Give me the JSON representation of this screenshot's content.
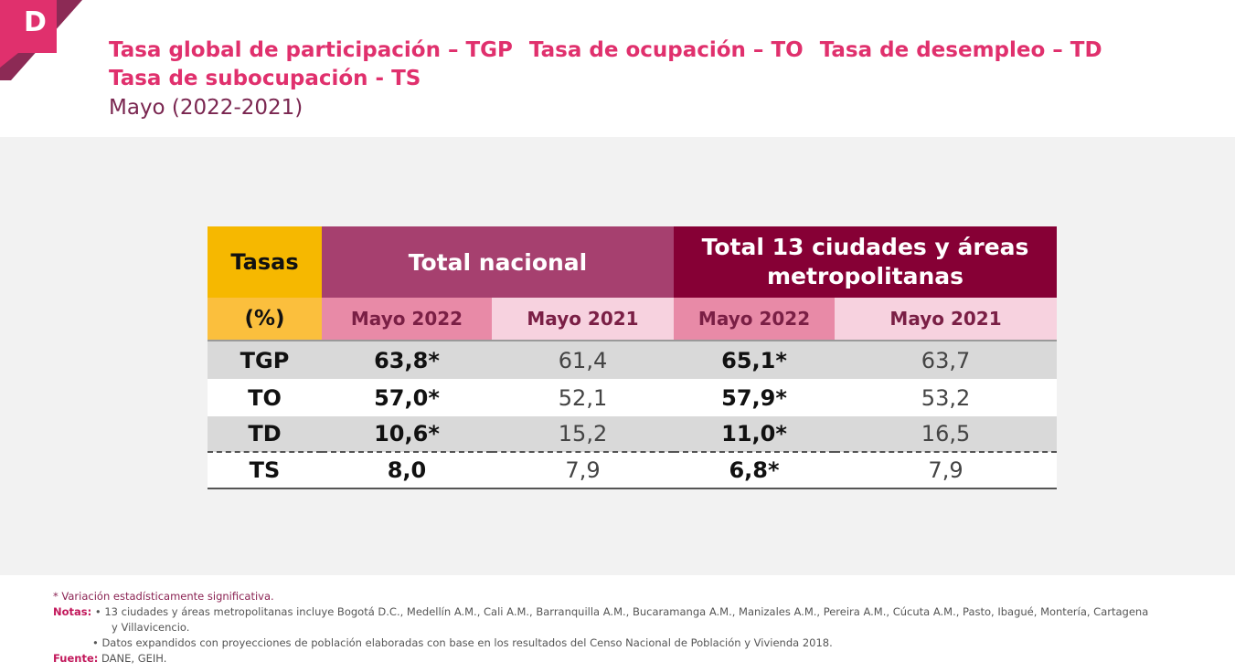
{
  "logo": {
    "letter": "D",
    "accent_color": "#e0306d"
  },
  "title": {
    "line1": [
      "Tasa global de participación – TGP",
      "Tasa de ocupación – TO",
      "Tasa de desempleo – TD"
    ],
    "line2": "Tasa de subocupación - TS",
    "subtitle": "Mayo (2022-2021)"
  },
  "table": {
    "header": {
      "tasas": "Tasas",
      "pct": "(%)",
      "group1": "Total nacional",
      "group2": "Total 13 ciudades y áreas metropolitanas",
      "cols": [
        "Mayo 2022",
        "Mayo 2021",
        "Mayo 2022",
        "Mayo 2021"
      ]
    },
    "rows": [
      {
        "label": "TGP",
        "v1": "63,8*",
        "v2": "61,4",
        "v3": "65,1*",
        "v4": "63,7"
      },
      {
        "label": "TO",
        "v1": "57,0*",
        "v2": "52,1",
        "v3": "57,9*",
        "v4": "53,2"
      },
      {
        "label": "TD",
        "v1": "10,6*",
        "v2": "15,2",
        "v3": "11,0*",
        "v4": "16,5"
      },
      {
        "label": "TS",
        "v1": "8,0",
        "v2": "7,9",
        "v3": "6,8*",
        "v4": "7,9"
      }
    ]
  },
  "notes": {
    "significance": "* Variación estadísticamente significativa.",
    "notas_label": "Notas:",
    "nota1": "• 13 ciudades y áreas metropolitanas incluye Bogotá D.C., Medellín A.M., Cali A.M., Barranquilla A.M., Bucaramanga A.M., Manizales A.M., Pereira A.M., Cúcuta A.M., Pasto, Ibagué, Montería, Cartagena",
    "nota1b": "y Villavicencio.",
    "nota2": "• Datos expandidos con proyecciones de población elaboradas con base en los resultados del Censo Nacional de Población y Vivienda 2018.",
    "fuente_label": "Fuente:",
    "fuente": "DANE, GEIH."
  }
}
